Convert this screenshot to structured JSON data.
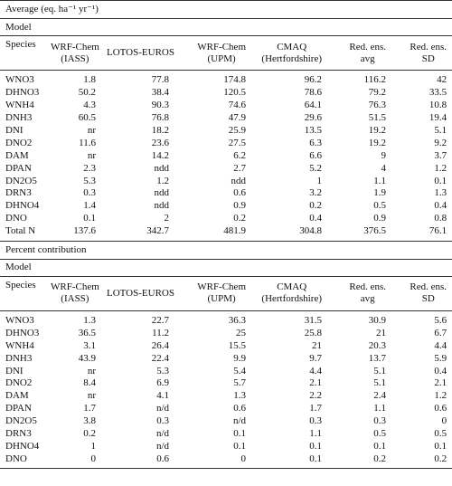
{
  "sections": [
    {
      "title": "Average (eq. ha⁻¹ yr⁻¹)",
      "group": "Model",
      "columns": [
        [
          "Species"
        ],
        [
          "WRF-Chem",
          "(IASS)"
        ],
        [
          "LOTOS-EUROS"
        ],
        [
          "WRF-Chem",
          "(UPM)"
        ],
        [
          "CMAQ",
          "(Hertfordshire)"
        ],
        [
          "Red. ens.",
          "avg"
        ],
        [
          "Red. ens.",
          "SD"
        ]
      ],
      "rows": [
        [
          "WNO3",
          "1.8",
          "77.8",
          "174.8",
          "96.2",
          "116.2",
          "42"
        ],
        [
          "DHNO3",
          "50.2",
          "38.4",
          "120.5",
          "78.6",
          "79.2",
          "33.5"
        ],
        [
          "WNH4",
          "4.3",
          "90.3",
          "74.6",
          "64.1",
          "76.3",
          "10.8"
        ],
        [
          "DNH3",
          "60.5",
          "76.8",
          "47.9",
          "29.6",
          "51.5",
          "19.4"
        ],
        [
          "DNI",
          "nr",
          "18.2",
          "25.9",
          "13.5",
          "19.2",
          "5.1"
        ],
        [
          "DNO2",
          "11.6",
          "23.6",
          "27.5",
          "6.3",
          "19.2",
          "9.2"
        ],
        [
          "DAM",
          "nr",
          "14.2",
          "6.2",
          "6.6",
          "9",
          "3.7"
        ],
        [
          "DPAN",
          "2.3",
          "ndd",
          "2.7",
          "5.2",
          "4",
          "1.2"
        ],
        [
          "DN2O5",
          "5.3",
          "1.2",
          "ndd",
          "1",
          "1.1",
          "0.1"
        ],
        [
          "DRN3",
          "0.3",
          "ndd",
          "0.6",
          "3.2",
          "1.9",
          "1.3"
        ],
        [
          "DHNO4",
          "1.4",
          "ndd",
          "0.9",
          "0.2",
          "0.5",
          "0.4"
        ],
        [
          "DNO",
          "0.1",
          "2",
          "0.2",
          "0.4",
          "0.9",
          "0.8"
        ],
        [
          "Total N",
          "137.6",
          "342.7",
          "481.9",
          "304.8",
          "376.5",
          "76.1"
        ]
      ]
    },
    {
      "title": "Percent contribution",
      "group": "Model",
      "columns": [
        [
          "Species"
        ],
        [
          "WRF-Chem",
          "(IASS)"
        ],
        [
          "LOTOS-EUROS"
        ],
        [
          "WRF-Chem",
          "(UPM)"
        ],
        [
          "CMAQ",
          "(Hertfordshire)"
        ],
        [
          "Red. ens.",
          "avg"
        ],
        [
          "Red. ens.",
          "SD"
        ]
      ],
      "rows": [
        [
          "WNO3",
          "1.3",
          "22.7",
          "36.3",
          "31.5",
          "30.9",
          "5.6"
        ],
        [
          "DHNO3",
          "36.5",
          "11.2",
          "25",
          "25.8",
          "21",
          "6.7"
        ],
        [
          "WNH4",
          "3.1",
          "26.4",
          "15.5",
          "21",
          "20.3",
          "4.4"
        ],
        [
          "DNH3",
          "43.9",
          "22.4",
          "9.9",
          "9.7",
          "13.7",
          "5.9"
        ],
        [
          "DNI",
          "nr",
          "5.3",
          "5.4",
          "4.4",
          "5.1",
          "0.4"
        ],
        [
          "DNO2",
          "8.4",
          "6.9",
          "5.7",
          "2.1",
          "5.1",
          "2.1"
        ],
        [
          "DAM",
          "nr",
          "4.1",
          "1.3",
          "2.2",
          "2.4",
          "1.2"
        ],
        [
          "DPAN",
          "1.7",
          "n/d",
          "0.6",
          "1.7",
          "1.1",
          "0.6"
        ],
        [
          "DN2O5",
          "3.8",
          "0.3",
          "n/d",
          "0.3",
          "0.3",
          "0"
        ],
        [
          "DRN3",
          "0.2",
          "n/d",
          "0.1",
          "1.1",
          "0.5",
          "0.5"
        ],
        [
          "DHNO4",
          "1",
          "n/d",
          "0.1",
          "0.1",
          "0.1",
          "0.1"
        ],
        [
          "DNO",
          "0",
          "0.6",
          "0",
          "0.1",
          "0.2",
          "0.2"
        ]
      ]
    }
  ]
}
